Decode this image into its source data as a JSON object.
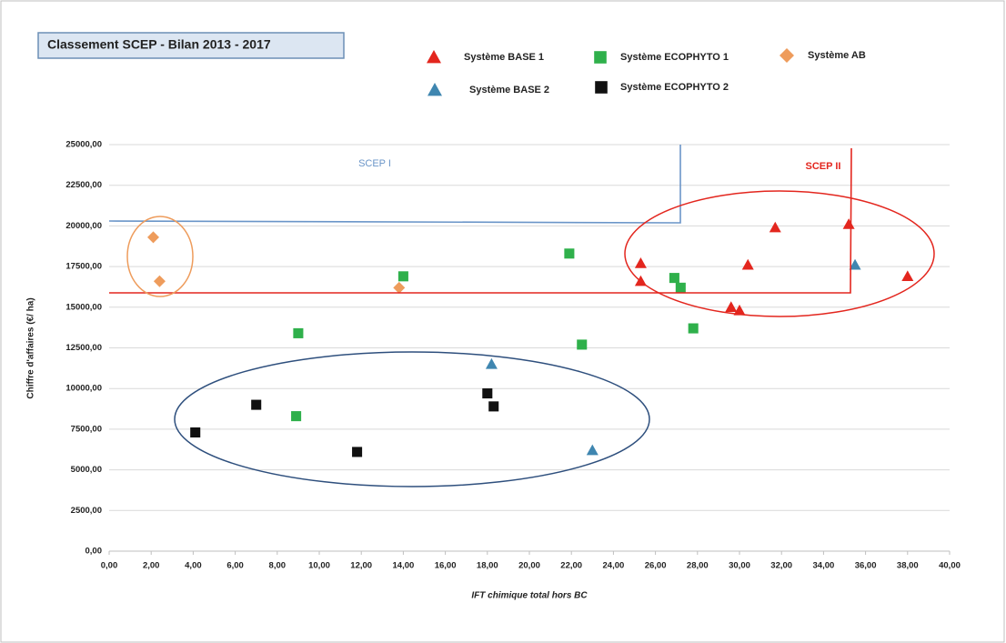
{
  "chart_data": {
    "type": "scatter",
    "title": "Classement SCEP - Bilan 2013 -  2017",
    "x_label": "IFT chimique total hors BC",
    "y_label": "Chiffre d'affaires (€/ ha)",
    "annotations": [
      "SCEP I",
      "SCEP II"
    ],
    "grid": true,
    "xlim": [
      0,
      40
    ],
    "ylim": [
      0,
      25000
    ],
    "xticks": [
      {
        "value": 0,
        "label": "0,00"
      },
      {
        "value": 2,
        "label": "2,00"
      },
      {
        "value": 4,
        "label": "4,00"
      },
      {
        "value": 6,
        "label": "6,00"
      },
      {
        "value": 8,
        "label": "8,00"
      },
      {
        "value": 10,
        "label": "10,00"
      },
      {
        "value": 12,
        "label": "12,00"
      },
      {
        "value": 14,
        "label": "14,00"
      },
      {
        "value": 16,
        "label": "16,00"
      },
      {
        "value": 18,
        "label": "18,00"
      },
      {
        "value": 20,
        "label": "20,00"
      },
      {
        "value": 22,
        "label": "22,00"
      },
      {
        "value": 24,
        "label": "24,00"
      },
      {
        "value": 26,
        "label": "26,00"
      },
      {
        "value": 28,
        "label": "28,00"
      },
      {
        "value": 30,
        "label": "30,00"
      },
      {
        "value": 32,
        "label": "32,00"
      },
      {
        "value": 34,
        "label": "34,00"
      },
      {
        "value": 36,
        "label": "36,00"
      },
      {
        "value": 38,
        "label": "38,00"
      },
      {
        "value": 40,
        "label": "40,00"
      }
    ],
    "yticks": [
      {
        "value": 0,
        "label": "0,00"
      },
      {
        "value": 2500,
        "label": "2500,00"
      },
      {
        "value": 5000,
        "label": "5000,00"
      },
      {
        "value": 7500,
        "label": "7500,00"
      },
      {
        "value": 10000,
        "label": "10000,00"
      },
      {
        "value": 12500,
        "label": "12500,00"
      },
      {
        "value": 15000,
        "label": "15000,00"
      },
      {
        "value": 17500,
        "label": "17500,00"
      },
      {
        "value": 20000,
        "label": "20000,00"
      },
      {
        "value": 22500,
        "label": "22500,00"
      },
      {
        "value": 25000,
        "label": "25000,00"
      }
    ],
    "series": [
      {
        "name": "Système BASE 1",
        "color": "#e3261e",
        "marker": "triangle",
        "x": [
          25.3,
          25.3,
          29.6,
          30.0,
          30.4,
          31.7,
          35.2,
          38.0
        ],
        "values": [
          17700,
          16600,
          15000,
          14800,
          17600,
          19900,
          20100,
          16900
        ]
      },
      {
        "name": "Système BASE 2",
        "color": "#3f86b0",
        "marker": "triangle",
        "x": [
          18.2,
          23.0,
          35.5
        ],
        "values": [
          11500,
          6200,
          17600
        ]
      },
      {
        "name": "Système ECOPHYTO 1",
        "color": "#2fb04b",
        "marker": "square",
        "x": [
          8.9,
          9.0,
          14.0,
          21.9,
          22.5,
          26.9,
          27.2,
          27.8
        ],
        "values": [
          8300,
          13400,
          16900,
          18300,
          12700,
          16800,
          16200,
          13700
        ]
      },
      {
        "name": "Système ECOPHYTO 2",
        "color": "#111111",
        "marker": "square",
        "x": [
          4.1,
          7.0,
          11.8,
          18.0,
          18.3
        ],
        "values": [
          7300,
          9000,
          6100,
          9700,
          8900
        ]
      },
      {
        "name": "Système  AB",
        "color": "#ee9c5c",
        "marker": "diamond",
        "x": [
          2.1,
          2.4,
          13.8
        ],
        "values": [
          19300,
          16600,
          16200
        ]
      }
    ]
  }
}
